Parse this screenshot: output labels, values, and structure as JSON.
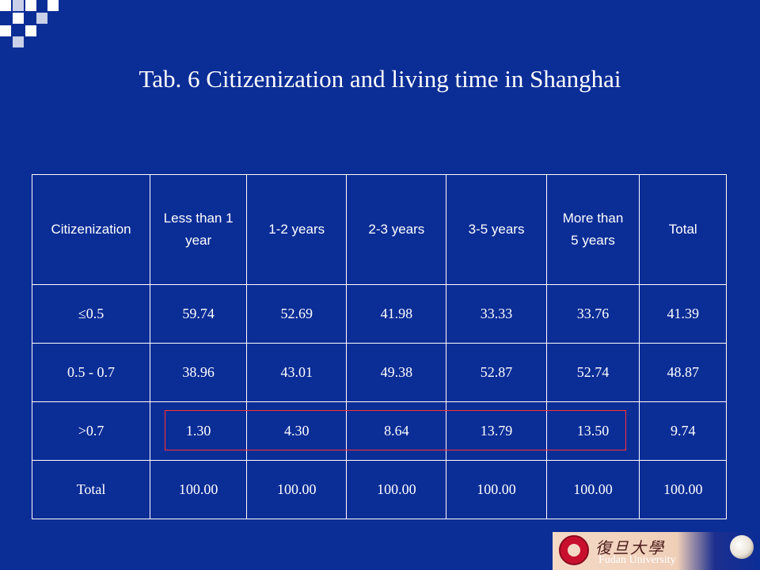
{
  "title": "Tab. 6 Citizenization and living time in Shanghai",
  "table": {
    "header": {
      "c0": "Citizenization",
      "c1": "Less than 1 year",
      "c2": "1-2 years",
      "c3": "2-3 years",
      "c4": "3-5 years",
      "c5": "More than 5 years",
      "c6": "Total"
    },
    "rows": [
      [
        "≤0.5",
        "59.74",
        "52.69",
        "41.98",
        "33.33",
        "33.76",
        "41.39"
      ],
      [
        "0.5 - 0.7",
        "38.96",
        "43.01",
        "49.38",
        "52.87",
        "52.74",
        "48.87"
      ],
      [
        ">0.7",
        "1.30",
        "4.30",
        "8.64",
        "13.79",
        "13.50",
        "9.74"
      ],
      [
        "Total",
        "100.00",
        "100.00",
        "100.00",
        "100.00",
        "100.00",
        "100.00"
      ]
    ]
  },
  "colors": {
    "background": "#0b2d96",
    "text": "#ffffff",
    "highlight_border": "#ff3030"
  },
  "footer": {
    "logo_cn": "復旦大學",
    "logo_en": "Fudan University",
    "seal_icon": "fudan-seal-icon"
  }
}
